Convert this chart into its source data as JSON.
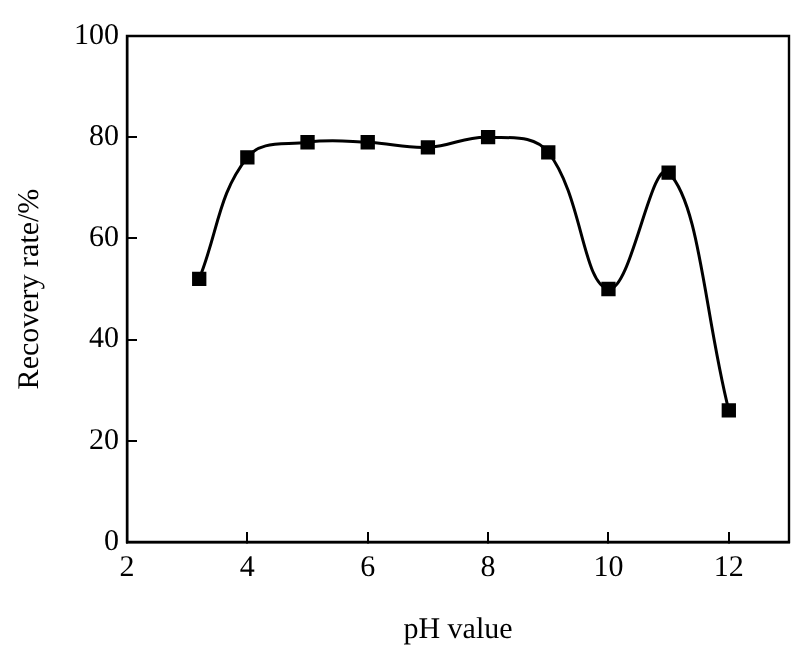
{
  "chart_data": {
    "type": "line",
    "xlabel": "pH value",
    "ylabel": "Recovery rate/%",
    "x": [
      3.2,
      4,
      5,
      6,
      7,
      8,
      9,
      10,
      11,
      12
    ],
    "series": [
      {
        "color": "#000000",
        "values": [
          52,
          76,
          79,
          79,
          78,
          80,
          77,
          50,
          73,
          26
        ]
      }
    ],
    "xlim": [
      2,
      13
    ],
    "xticks": [
      2,
      4,
      6,
      8,
      10,
      12
    ],
    "ylim": [
      0,
      100
    ],
    "yticks": [
      0,
      20,
      40,
      60,
      80,
      100
    ],
    "grid": false,
    "legend": false,
    "marker": "square",
    "line_style": "solid"
  }
}
